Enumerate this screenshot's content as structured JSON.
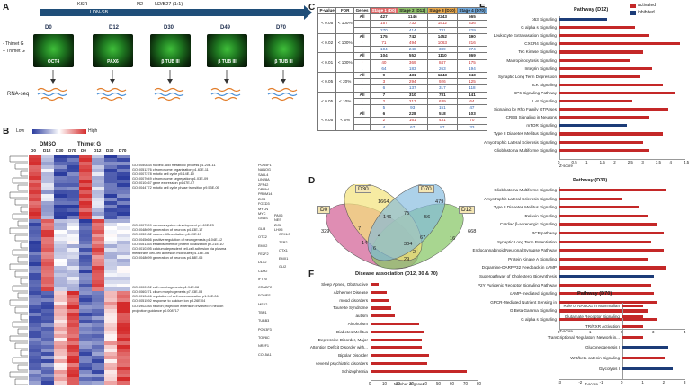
{
  "panels": {
    "a": "A",
    "b": "B",
    "c": "C",
    "d": "D",
    "e": "E",
    "f": "F"
  },
  "panelA": {
    "stage_labels": [
      "KSR",
      "LDN-SB",
      "N2",
      "N2/B27 (1:1)"
    ],
    "timepoints": [
      "D0",
      "D12",
      "D30",
      "D49",
      "D70"
    ],
    "stains": [
      "OCT4",
      "PAX6",
      "β TUB III",
      "β TUB III",
      "β TUB III"
    ],
    "legend": [
      "- Thimet G",
      "+ Thimet G"
    ],
    "rnaseq": "RNA-seq"
  },
  "panelB": {
    "scale_low": "Low",
    "scale_high": "High",
    "group1": "DMSO",
    "group2": "Thimet G",
    "columns": [
      "D0",
      "D12",
      "D30",
      "D70",
      "D0",
      "D12",
      "D30",
      "D70"
    ],
    "go_terms": [
      "GO:0050834 nucleic acid metabolic process p1.20E-11",
      "GO:0051276 chromosome organization p1.63E-11",
      "GO:0007278 mitotic cell cycle p5.14E-10",
      "GO:0007049 chromosome segregation p1.03E-09",
      "GO:0010467 gene expression p4.47E-07",
      "GO:0044772 mitotic cell cycle phase transition p9.53E-05",
      "GO:0007399 nervous system development p1.69E-23",
      "GO:0048699 generation of neurons p4.63E-17",
      "GO:0030182 neuron differentiation p6.49E-17",
      "GO:0045666 positive regulation of neurogenesis p1.04E-12",
      "GO:0051354 establishment of protein localization p2.21E-10",
      "GO:0010395 calcium-dependent cell-cell adhesion via plasma",
      "membrane cell-cell adhesion molecules p1.16E-06",
      "GO:0048699 generation of neurons p4.88E-05",
      "GO:0000902 cell morphogenesis p1.94E-08",
      "GO:0060271 cilium morphogenesis p7.03E-08",
      "GO:0010646 regulation of cell communication p1.94E-06",
      "GO:0051592 response to calcium ion p8.26E-04",
      "GO:1902284 neuron projection extension involved in neuron",
      "projection guidance p0.008717"
    ],
    "genes_col1": [
      "POU5F1",
      "NANOG",
      "SALL4",
      "LIN28A",
      "ZFP42",
      "DPPA4",
      "PRDM14",
      "ZIC3",
      "FOXD3",
      "MYCN",
      "MYC",
      "GNAS"
    ],
    "genes_col2": [
      "PAX6",
      "NES",
      "ZIC2",
      "LHX5",
      "GLI3",
      "OTX2",
      "EMX2",
      "FEZF2",
      "DLX2",
      "CDH2",
      "IFT20",
      "CRABP2",
      "EOMES",
      "MSX2",
      "TBR1",
      "TUBB3",
      "POU3F3",
      "TOP8C",
      "NR2F1",
      "COL5A1"
    ],
    "genes_col3": [
      "GRHL3",
      "ZEB2",
      "OTX1",
      "EMX1",
      "GLI2"
    ]
  },
  "panelC": {
    "headers": [
      "P-value",
      "FDR",
      "Genes",
      "Stage 1 (D0)",
      "Stage 2 (D12)",
      "Stage 3 (D30)",
      "Stage 4 (D70)"
    ],
    "header_colors": [
      "#e06666",
      "#8fc16a",
      "#e9a84a",
      "#6fa8dc"
    ],
    "rows": [
      {
        "p": "< 0.05",
        "fdr": "< 100%",
        "sets": [
          [
            "All",
            "427",
            "1146",
            "2243",
            "565"
          ],
          [
            "↑",
            "157",
            "732",
            "1512",
            "336"
          ],
          [
            "↓",
            "270",
            "414",
            "731",
            "229"
          ]
        ]
      },
      {
        "p": "< 0.02",
        "fdr": "< 100%",
        "sets": [
          [
            "All",
            "175",
            "742",
            "1452",
            "490"
          ],
          [
            "↑",
            "71",
            "494",
            "1063",
            "216"
          ],
          [
            "↓",
            "104",
            "248",
            "389",
            "274"
          ]
        ]
      },
      {
        "p": "< 0.01",
        "fdr": "< 100%",
        "sets": [
          [
            "All",
            "104",
            "552",
            "1110",
            "369"
          ],
          [
            "↑",
            "40",
            "369",
            "847",
            "175"
          ],
          [
            "↓",
            "64",
            "183",
            "263",
            "194"
          ]
        ]
      },
      {
        "p": "< 0.05",
        "fdr": "< 20%",
        "sets": [
          [
            "All",
            "9",
            "431",
            "1243",
            "243"
          ],
          [
            "↑",
            "3",
            "294",
            "926",
            "125"
          ],
          [
            "↓",
            "6",
            "137",
            "317",
            "118"
          ]
        ]
      },
      {
        "p": "< 0.05",
        "fdr": "< 10%",
        "sets": [
          [
            "All",
            "7",
            "310",
            "781",
            "141"
          ],
          [
            "↑",
            "2",
            "217",
            "639",
            "64"
          ],
          [
            "↓",
            "5",
            "93",
            "151",
            "47"
          ]
        ]
      },
      {
        "p": "< 0.05",
        "fdr": "< 5%",
        "sets": [
          [
            "All",
            "6",
            "228",
            "518",
            "103"
          ],
          [
            "↑",
            "2",
            "161",
            "431",
            "70"
          ],
          [
            "↓",
            "4",
            "67",
            "87",
            "33"
          ]
        ]
      }
    ]
  },
  "panelD": {
    "sets": [
      "D0",
      "D30",
      "D70",
      "D12"
    ],
    "counts": [
      {
        "v": "329"
      },
      {
        "v": "1664"
      },
      {
        "v": "479"
      },
      {
        "v": "668"
      },
      {
        "v": "75"
      },
      {
        "v": "146"
      },
      {
        "v": "56"
      },
      {
        "v": "7"
      },
      {
        "v": "14"
      },
      {
        "v": "4"
      },
      {
        "v": "67"
      },
      {
        "v": "16"
      },
      {
        "v": "6"
      },
      {
        "v": "304"
      },
      {
        "v": "29"
      },
      {
        "v": "2"
      }
    ],
    "venn_colors": [
      "#d4679a",
      "#f3e27a",
      "#7fb8dd",
      "#8bc86b"
    ]
  },
  "panelE": {
    "title": "Pathway (D12)",
    "legend": [
      {
        "label": "activated",
        "color": "#c42828"
      },
      {
        "label": "inhibited",
        "color": "#1c3c78"
      }
    ],
    "xlabel": "Z-score",
    "ticks": [
      "0",
      "0.5",
      "1",
      "1.5",
      "2",
      "2.5",
      "3",
      "3.5",
      "4",
      "4.5"
    ]
  },
  "panelD30": {
    "title": "Pathway (D30)",
    "xlabel": "Z-score",
    "ticks": [
      "0",
      "1",
      "2",
      "3",
      "4"
    ]
  },
  "panelF": {
    "title": "Disease association (D12, 30 & 70)",
    "xlabel": "Number of genes",
    "ticks": [
      "0",
      "10",
      "20",
      "30",
      "40",
      "50",
      "60",
      "70",
      "80"
    ]
  },
  "panelD70": {
    "title": "Pathway (D70)",
    "xlabel": "Z-score",
    "ticks": [
      "-3",
      "-2",
      "-1",
      "0",
      "1",
      "2",
      "3"
    ]
  },
  "chart_data": [
    {
      "type": "bar",
      "title": "Pathway (D12)",
      "xlabel": "Z-score",
      "xlim": [
        0,
        4.5
      ],
      "categories": [
        "p53 Signaling",
        "G alpha s Signaling",
        "Leukocyte Extravasation Signaling",
        "CXCR4 Signaling",
        "Tec Kinase Signaling",
        "Macropinocytosis Signaling",
        "Integrin Signaling",
        "Synaptic Long Term Depression",
        "ILK Signaling",
        "GP6 Signaling Pathway",
        "IL-8 Signaling",
        "Signaling by Rho Family GTPases",
        "CREB Signaling in Neurons",
        "mTOR Signaling",
        "Type II Diabetes Mellitus Signaling",
        "Amyotrophic Lateral Sclerosis Signaling",
        "Glioblastoma Multiforme Signaling"
      ],
      "values": [
        1.7,
        2.7,
        3.2,
        4.3,
        3.0,
        2.5,
        3.3,
        2.9,
        3.7,
        4.1,
        2.6,
        3.9,
        3.2,
        2.4,
        3.7,
        3.0,
        3.2
      ],
      "direction": [
        "inhibited",
        "activated",
        "activated",
        "activated",
        "activated",
        "activated",
        "activated",
        "activated",
        "activated",
        "activated",
        "activated",
        "activated",
        "activated",
        "inhibited",
        "activated",
        "activated",
        "activated"
      ]
    },
    {
      "type": "bar",
      "title": "Pathway (D30)",
      "xlabel": "Z-score",
      "xlim": [
        0,
        4
      ],
      "categories": [
        "Glioblastoma Multiforme Signaling",
        "Amyotrophic Lateral Sclerosis Signaling",
        "Type II Diabetes Mellitus Signaling",
        "Relaxin Signaling",
        "Cardiac β-adrenergic Signaling",
        "PCP pathway",
        "Synaptic Long Term Potentiation",
        "Endocannabinoid Neuronal Synapse Pathway",
        "Protein Kinase A Signaling",
        "Dopamine-DARPP32 Feedback in cAMP",
        "Superpathway of Cholesterol Biosynthesis",
        "P2Y Purigenic Receptor Signaling Pathway",
        "cAMP-mediated signaling",
        "GPCR-Mediated Nutrient Sensing in",
        "G Beta Gamma Signaling",
        "G alpha s Signaling"
      ],
      "values": [
        3.4,
        2.0,
        2.5,
        2.8,
        3.1,
        3.3,
        2.9,
        3.3,
        2.8,
        3.4,
        3.0,
        2.9,
        3.0,
        3.1,
        2.8,
        3.1
      ],
      "direction": [
        "activated",
        "activated",
        "activated",
        "activated",
        "activated",
        "activated",
        "activated",
        "activated",
        "activated",
        "activated",
        "inhibited",
        "activated",
        "activated",
        "activated",
        "activated",
        "activated"
      ]
    },
    {
      "type": "bar",
      "title": "Disease association (D12, 30 & 70)",
      "xlabel": "Number of genes",
      "xlim": [
        0,
        80
      ],
      "categories": [
        "Sleep Apnea, Obstructive",
        "Alzheimer Disease",
        "mood disorders",
        "Tourette Syndrome",
        "autism",
        "Alcoholism",
        "Diabetes Mellitus",
        "Depressive Disorder, Major",
        "Attention Deficit Disorder with...",
        "Bipolar Disorder",
        "several psychiatric disorders",
        "Schizophrenia"
      ],
      "values": [
        6,
        12,
        13,
        15,
        18,
        36,
        39,
        38,
        38,
        43,
        42,
        71
      ]
    },
    {
      "type": "bar",
      "title": "Pathway (D70)",
      "xlabel": "Z-score",
      "xlim": [
        -3,
        3
      ],
      "categories": [
        "Role of NANOG in Mammalian",
        "Glutamate Receptor Signaling",
        "TR/RXR Activation",
        "Transcriptional Regulatory Network in...",
        "Gluconeogenesis I",
        "Wnt/beta-catenin Signaling",
        "Glycolysis I"
      ],
      "values": [
        1.0,
        1.0,
        1.0,
        1.0,
        2.2,
        2.0,
        2.4
      ],
      "direction": [
        "activated",
        "activated",
        "activated",
        "activated",
        "inhibited",
        "activated",
        "inhibited"
      ]
    }
  ]
}
